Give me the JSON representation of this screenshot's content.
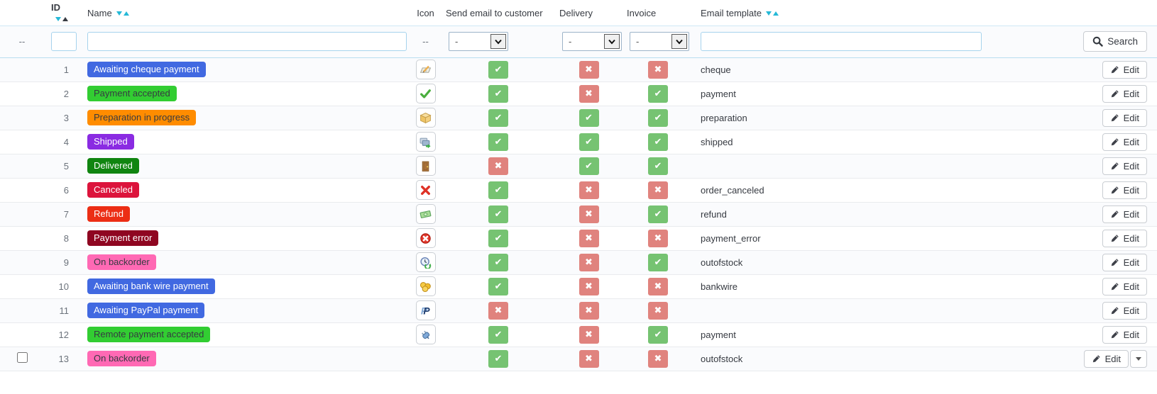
{
  "table": {
    "columns": [
      {
        "key": "check",
        "label": ""
      },
      {
        "key": "id",
        "label": "ID",
        "sortable": true
      },
      {
        "key": "name",
        "label": "Name",
        "sortable": true
      },
      {
        "key": "icon",
        "label": "Icon"
      },
      {
        "key": "send_email",
        "label": "Send email to customer"
      },
      {
        "key": "delivery",
        "label": "Delivery"
      },
      {
        "key": "invoice",
        "label": "Invoice"
      },
      {
        "key": "template",
        "label": "Email template",
        "sortable": true
      },
      {
        "key": "actions",
        "label": ""
      }
    ],
    "sort": {
      "sorted_column": "ID",
      "direction": "asc",
      "active_arrow_color": "#363A41",
      "inactive_arrow_color": "#25B9D7"
    },
    "filter": {
      "dash": "--",
      "id_value": "",
      "name_value": "",
      "select_value": "-",
      "template_value": "",
      "search_label": "Search"
    },
    "actions": {
      "edit_label": "Edit"
    },
    "rows": [
      {
        "id": 1,
        "name": "Awaiting cheque payment",
        "badge_bg": "#4169E1",
        "badge_fg": "#FFFFFF",
        "icon": "cheque-icon",
        "send_email": true,
        "delivery": false,
        "invoice": false,
        "template": "cheque"
      },
      {
        "id": 2,
        "name": "Payment accepted",
        "badge_bg": "#32CD32",
        "badge_fg": "#363A41",
        "icon": "check-icon",
        "send_email": true,
        "delivery": false,
        "invoice": true,
        "template": "payment"
      },
      {
        "id": 3,
        "name": "Preparation in progress",
        "badge_bg": "#FF8C00",
        "badge_fg": "#363A41",
        "icon": "package-icon",
        "send_email": true,
        "delivery": true,
        "invoice": true,
        "template": "preparation"
      },
      {
        "id": 4,
        "name": "Shipped",
        "badge_bg": "#8A2BE2",
        "badge_fg": "#FFFFFF",
        "icon": "delivery-icon",
        "send_email": true,
        "delivery": true,
        "invoice": true,
        "template": "shipped"
      },
      {
        "id": 5,
        "name": "Delivered",
        "badge_bg": "#108510",
        "badge_fg": "#FFFFFF",
        "icon": "door-icon",
        "send_email": false,
        "delivery": true,
        "invoice": true,
        "template": ""
      },
      {
        "id": 6,
        "name": "Canceled",
        "badge_bg": "#DC143C",
        "badge_fg": "#FFFFFF",
        "icon": "cross-icon",
        "send_email": true,
        "delivery": false,
        "invoice": false,
        "template": "order_canceled"
      },
      {
        "id": 7,
        "name": "Refund",
        "badge_bg": "#EC2E15",
        "badge_fg": "#FFFFFF",
        "icon": "money-icon",
        "send_email": true,
        "delivery": false,
        "invoice": true,
        "template": "refund"
      },
      {
        "id": 8,
        "name": "Payment error",
        "badge_bg": "#8F0621",
        "badge_fg": "#FFFFFF",
        "icon": "error-icon",
        "send_email": true,
        "delivery": false,
        "invoice": false,
        "template": "payment_error"
      },
      {
        "id": 9,
        "name": "On backorder",
        "badge_bg": "#FF69B4",
        "badge_fg": "#363A41",
        "icon": "backorder-icon",
        "send_email": true,
        "delivery": false,
        "invoice": true,
        "template": "outofstock"
      },
      {
        "id": 10,
        "name": "Awaiting bank wire payment",
        "badge_bg": "#4169E1",
        "badge_fg": "#FFFFFF",
        "icon": "coins-icon",
        "send_email": true,
        "delivery": false,
        "invoice": false,
        "template": "bankwire"
      },
      {
        "id": 11,
        "name": "Awaiting PayPal payment",
        "badge_bg": "#4169E1",
        "badge_fg": "#FFFFFF",
        "icon": "paypal-icon",
        "send_email": false,
        "delivery": false,
        "invoice": false,
        "template": ""
      },
      {
        "id": 12,
        "name": "Remote payment accepted",
        "badge_bg": "#32CD32",
        "badge_fg": "#363A41",
        "icon": "plugin-icon",
        "send_email": true,
        "delivery": false,
        "invoice": true,
        "template": "payment"
      },
      {
        "id": 13,
        "name": "On backorder",
        "badge_bg": "#FF69B4",
        "badge_fg": "#363A41",
        "icon": "",
        "send_email": true,
        "delivery": false,
        "invoice": false,
        "template": "outofstock",
        "checkbox": true,
        "split_button": true
      }
    ]
  },
  "colors": {
    "accent": "#25B9D7",
    "bool_true": "#76C372",
    "bool_false": "#E0837E",
    "filter_bg": "#EBF4FA",
    "text": "#363A41"
  }
}
